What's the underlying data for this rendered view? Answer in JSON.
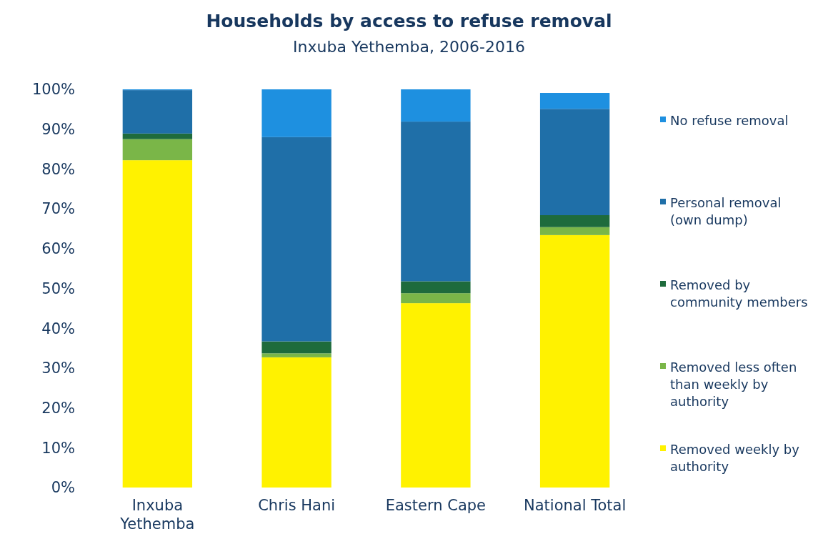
{
  "chart_data": {
    "type": "bar",
    "stacked": true,
    "title": "Households by access to refuse removal",
    "subtitle": "Inxuba Yethemba, 2006-2016",
    "categories": [
      "Inxuba Yethemba",
      "Chris Hani",
      "Eastern Cape",
      "National Total"
    ],
    "series": [
      {
        "name": "Removed weekly by authority",
        "color": "#fff200",
        "values": [
          82.2,
          32.7,
          46.3,
          63.4
        ]
      },
      {
        "name": "Removed less often than weekly by authority",
        "color": "#7ab648",
        "values": [
          5.3,
          1.0,
          2.5,
          2.0
        ]
      },
      {
        "name": "Removed by community members",
        "color": "#1e6b3c",
        "values": [
          1.4,
          3.0,
          3.0,
          3.0
        ]
      },
      {
        "name": "Personal removal (own dump)",
        "color": "#1f6fa8",
        "values": [
          10.9,
          51.3,
          40.1,
          26.7
        ]
      },
      {
        "name": "No refuse removal",
        "color": "#1e90e0",
        "values": [
          0.2,
          12.0,
          8.1,
          4.0
        ]
      }
    ],
    "ylim": [
      0,
      100
    ],
    "yticks": [
      {
        "value": 0,
        "label": "0%"
      },
      {
        "value": 10,
        "label": "10%"
      },
      {
        "value": 20,
        "label": "20%"
      },
      {
        "value": 30,
        "label": "30%"
      },
      {
        "value": 40,
        "label": "40%"
      },
      {
        "value": 50,
        "label": "50%"
      },
      {
        "value": 60,
        "label": "60%"
      },
      {
        "value": 70,
        "label": "70%"
      },
      {
        "value": 80,
        "label": "80%"
      },
      {
        "value": 90,
        "label": "90%"
      },
      {
        "value": 100,
        "label": "100%"
      }
    ],
    "legend": "right",
    "grid": false
  }
}
